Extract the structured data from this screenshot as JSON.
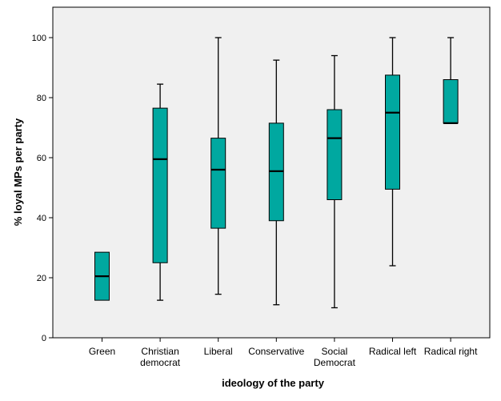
{
  "chart_data": {
    "type": "boxplot",
    "xlabel": "ideology of the party",
    "ylabel": "% loyal MPs per party",
    "ylim": [
      0,
      110
    ],
    "yticks": [
      0,
      20,
      40,
      60,
      80,
      100
    ],
    "grid": false,
    "legend": "none",
    "categories": [
      [
        "Green"
      ],
      [
        "Christian",
        "democrat"
      ],
      [
        "Liberal"
      ],
      [
        "Conservative"
      ],
      [
        "Social",
        "Democrat"
      ],
      [
        "Radical left"
      ],
      [
        "Radical right"
      ]
    ],
    "boxes": [
      {
        "whisker_low": null,
        "q1": 12.5,
        "median": 20.5,
        "q3": 28.5,
        "whisker_high": null
      },
      {
        "whisker_low": 12.5,
        "q1": 25.0,
        "median": 59.5,
        "q3": 76.5,
        "whisker_high": 84.5
      },
      {
        "whisker_low": 14.5,
        "q1": 36.5,
        "median": 56.0,
        "q3": 66.5,
        "whisker_high": 100.0
      },
      {
        "whisker_low": 11.0,
        "q1": 39.0,
        "median": 55.5,
        "q3": 71.5,
        "whisker_high": 92.5
      },
      {
        "whisker_low": 10.0,
        "q1": 46.0,
        "median": 66.5,
        "q3": 76.0,
        "whisker_high": 94.0
      },
      {
        "whisker_low": 24.0,
        "q1": 49.5,
        "median": 75.0,
        "q3": 87.5,
        "whisker_high": 100.0
      },
      {
        "whisker_low": null,
        "q1": 71.5,
        "median": 71.5,
        "q3": 86.0,
        "whisker_high": 100.0
      }
    ],
    "colors": {
      "box_fill": "#00a8a0",
      "box_stroke": "#000000",
      "plot_background": "#f0f0f0",
      "frame": "#000000"
    }
  }
}
